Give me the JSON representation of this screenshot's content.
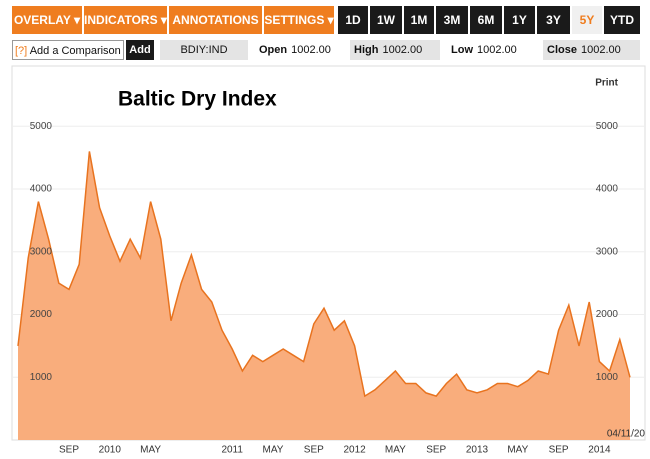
{
  "toolbar": {
    "menus": [
      "OVERLAY ▾",
      "INDICATORS ▾",
      "ANNOTATIONS ▾",
      "SETTINGS ▾"
    ],
    "ranges": [
      "1D",
      "1W",
      "1M",
      "3M",
      "6M",
      "1Y",
      "3Y",
      "5Y",
      "YTD"
    ]
  },
  "quote": {
    "help": "[?]",
    "comparison": "Add a Comparison",
    "add": "Add",
    "ticker": "BDIY:IND",
    "fields": [
      {
        "label": "Open",
        "value": "1002.00"
      },
      {
        "label": "High",
        "value": "1002.00"
      },
      {
        "label": "Low",
        "value": "1002.00"
      },
      {
        "label": "Close",
        "value": "1002.00"
      }
    ]
  },
  "print": "Print",
  "date_stamp": "04/11/20",
  "chart_data": {
    "type": "area",
    "title": "Baltic Dry Index",
    "categories": [
      null,
      null,
      null,
      null,
      null,
      "SEP",
      null,
      null,
      null,
      "2010",
      null,
      null,
      null,
      "MAY",
      null,
      null,
      null,
      null,
      null,
      null,
      null,
      "2011",
      null,
      null,
      null,
      "MAY",
      null,
      null,
      null,
      "SEP",
      null,
      null,
      null,
      "2012",
      null,
      null,
      null,
      "MAY",
      null,
      null,
      null,
      "SEP",
      null,
      null,
      null,
      "2013",
      null,
      null,
      null,
      "MAY",
      null,
      null,
      null,
      "SEP",
      null,
      null,
      null,
      "2014",
      null,
      null,
      null
    ],
    "values": [
      1500,
      2900,
      3800,
      3200,
      2500,
      2400,
      2800,
      4600,
      3700,
      3250,
      2850,
      3200,
      2900,
      3800,
      3200,
      1900,
      2500,
      2950,
      2400,
      2200,
      1750,
      1450,
      1100,
      1350,
      1250,
      1350,
      1450,
      1350,
      1250,
      1850,
      2100,
      1750,
      1900,
      1500,
      700,
      800,
      950,
      1100,
      900,
      900,
      750,
      700,
      900,
      1050,
      800,
      750,
      800,
      900,
      900,
      850,
      950,
      1100,
      1050,
      1750,
      2150,
      1500,
      2200,
      1250,
      1100,
      1600,
      1000
    ],
    "color": "#f9ad7c",
    "line_color": "#e8731f",
    "ylim": [
      0,
      5600
    ],
    "yticks": [
      1000,
      2000,
      3000,
      4000,
      5000
    ],
    "grid": true
  }
}
